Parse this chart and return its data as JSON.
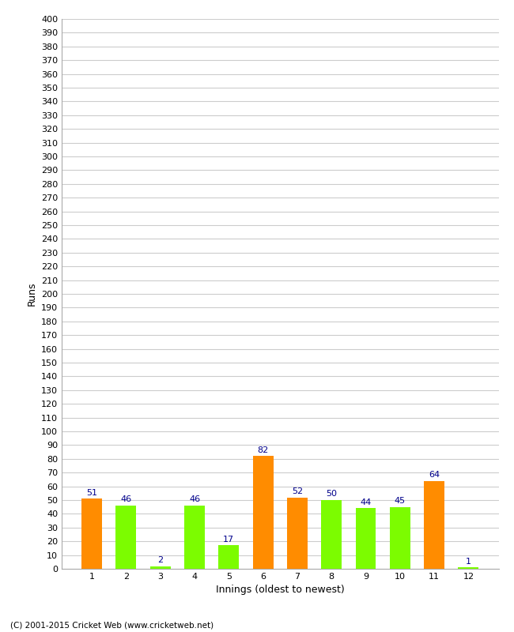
{
  "xlabel": "Innings (oldest to newest)",
  "ylabel": "Runs",
  "categories": [
    1,
    2,
    3,
    4,
    5,
    6,
    7,
    8,
    9,
    10,
    11,
    12
  ],
  "values": [
    51,
    46,
    2,
    46,
    17,
    82,
    52,
    50,
    44,
    45,
    64,
    1
  ],
  "bar_colors": [
    "#ff8c00",
    "#7cfc00",
    "#7cfc00",
    "#7cfc00",
    "#7cfc00",
    "#ff8c00",
    "#ff8c00",
    "#7cfc00",
    "#7cfc00",
    "#7cfc00",
    "#ff8c00",
    "#7cfc00"
  ],
  "ylim": [
    0,
    400
  ],
  "ytick_step": 10,
  "label_color": "#00008b",
  "background_color": "#ffffff",
  "grid_color": "#cccccc",
  "footer": "(C) 2001-2015 Cricket Web (www.cricketweb.net)"
}
